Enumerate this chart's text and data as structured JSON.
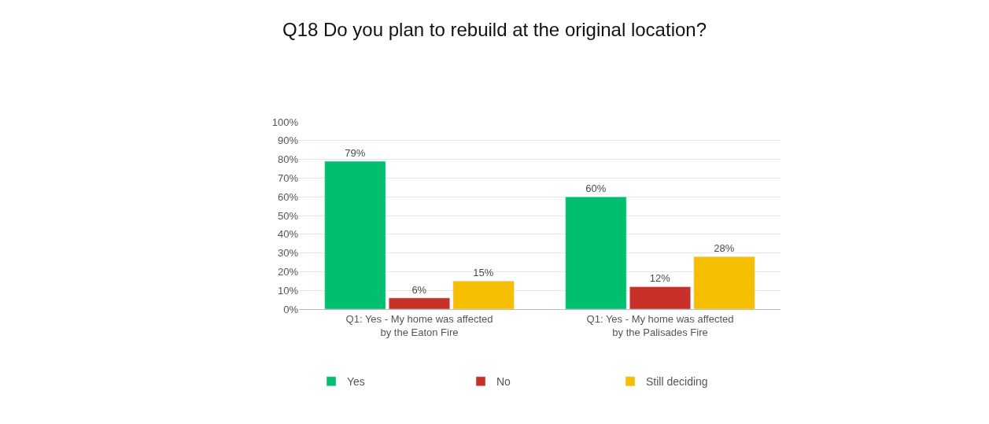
{
  "chart_data": {
    "type": "bar",
    "title": "Q18 Do you plan to rebuild at the original location?",
    "categories": [
      "Q1: Yes - My home was affected by the Eaton Fire",
      "Q1: Yes - My home was affected by the Palisades Fire"
    ],
    "series": [
      {
        "name": "Yes",
        "color": "#00bf6f",
        "values": [
          79,
          60
        ],
        "value_labels": [
          "79%",
          "60%"
        ]
      },
      {
        "name": "No",
        "color": "#c8312a",
        "values": [
          6,
          12
        ],
        "value_labels": [
          "6%",
          "12%"
        ]
      },
      {
        "name": "Still deciding",
        "color": "#f5be00",
        "values": [
          15,
          28
        ],
        "value_labels": [
          "15%",
          "28%"
        ]
      }
    ],
    "ylim": [
      0,
      100
    ],
    "yticks": [
      {
        "value": 0,
        "label": "0%"
      },
      {
        "value": 10,
        "label": "10%"
      },
      {
        "value": 20,
        "label": "20%"
      },
      {
        "value": 30,
        "label": "30%"
      },
      {
        "value": 40,
        "label": "40%"
      },
      {
        "value": 50,
        "label": "50%"
      },
      {
        "value": 60,
        "label": "60%"
      },
      {
        "value": 70,
        "label": "70%"
      },
      {
        "value": 80,
        "label": "80%"
      },
      {
        "value": 90,
        "label": "90%"
      },
      {
        "value": 100,
        "label": "100%"
      }
    ],
    "grid": "y",
    "legend": "bottom"
  }
}
